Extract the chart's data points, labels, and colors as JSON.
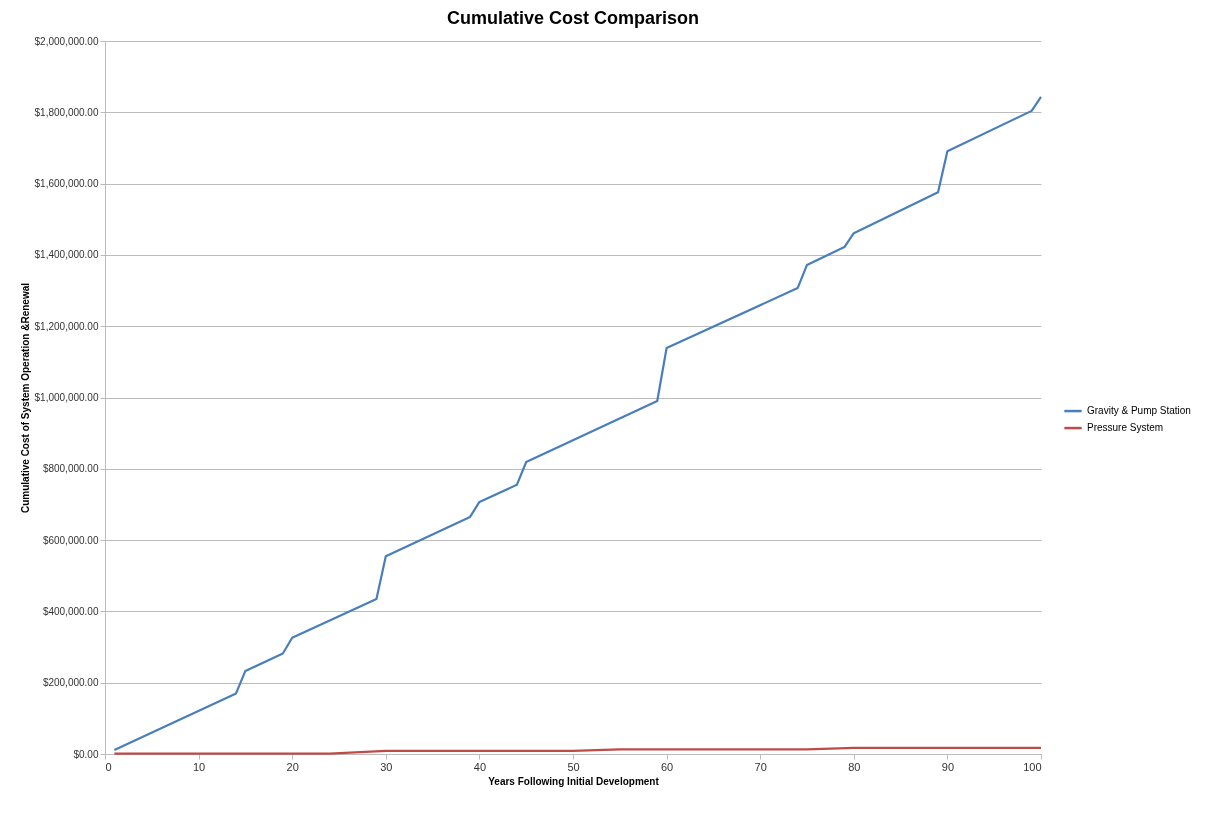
{
  "chart_data": {
    "type": "line",
    "title": "Cumulative Cost Comparison",
    "xlabel": "Years Following Initial Development",
    "ylabel": "Cumulative Cost of System Operation &Renewal",
    "xlim": [
      0,
      100
    ],
    "xticks": [
      0,
      10,
      20,
      30,
      40,
      50,
      60,
      70,
      80,
      90,
      100
    ],
    "ylim": [
      0,
      2000000
    ],
    "yticks": [
      {
        "value": 0,
        "label": "$0.00"
      },
      {
        "value": 200000,
        "label": "$200,000.00"
      },
      {
        "value": 400000,
        "label": "$400,000.00"
      },
      {
        "value": 600000,
        "label": "$600,000.00"
      },
      {
        "value": 800000,
        "label": "$800,000.00"
      },
      {
        "value": 1000000,
        "label": "$1,000,000.00"
      },
      {
        "value": 1200000,
        "label": "$1,200,000.00"
      },
      {
        "value": 1400000,
        "label": "$1,400,000.00"
      },
      {
        "value": 1600000,
        "label": "$1,600,000.00"
      },
      {
        "value": 1800000,
        "label": "$1,800,000.00"
      },
      {
        "value": 2000000,
        "label": "$2,000,000.00"
      }
    ],
    "grid": "y",
    "legend": "right",
    "marker": "none",
    "line_style": "solid",
    "series": [
      {
        "name": "Gravity & Pump Station",
        "color": "#4a7ebb",
        "x": [
          1,
          14,
          15,
          19,
          20,
          29,
          30,
          39,
          40,
          44,
          45,
          59,
          60,
          74,
          75,
          79,
          80,
          89,
          90,
          99,
          100
        ],
        "values": [
          11000,
          170000,
          233000,
          282000,
          326000,
          435000,
          555000,
          665000,
          707000,
          755000,
          819000,
          990000,
          1139000,
          1307000,
          1372000,
          1422000,
          1461000,
          1576000,
          1691000,
          1804000,
          1843000
        ]
      },
      {
        "name": "Pressure System",
        "color": "#be4b48",
        "x": [
          1,
          24,
          30,
          50,
          55,
          75,
          80,
          100
        ],
        "values": [
          1000,
          1000,
          9000,
          9000,
          13000,
          13000,
          17000,
          17000
        ]
      }
    ]
  }
}
